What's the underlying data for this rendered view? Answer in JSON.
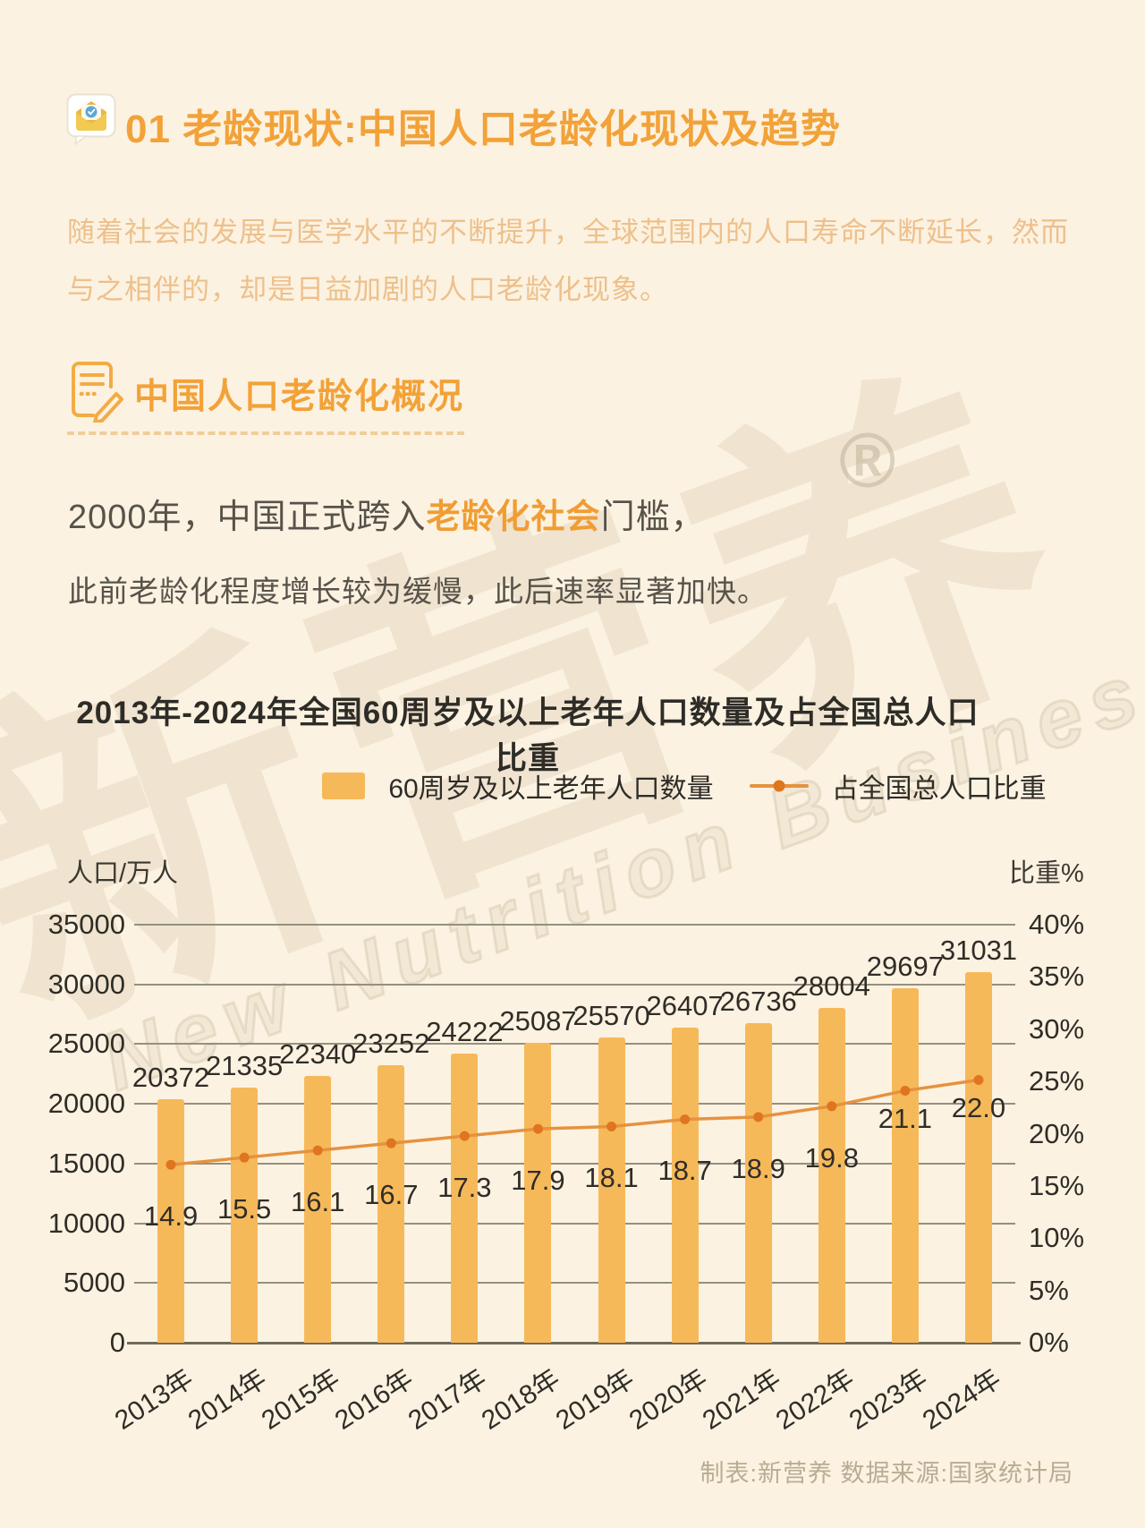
{
  "page": {
    "background": "#fcf2e1",
    "accent_orange": "#f2a238",
    "dark_text": "#57534a"
  },
  "header": {
    "badge_icon": "envelope-check-icon",
    "title": "01 老龄现状:中国人口老龄化现状及趋势"
  },
  "intro": {
    "text": "随着社会的发展与医学水平的不断提升，全球范围内的人口寿命不断延长，然而与之相伴的，却是日益加剧的人口老龄化现象。"
  },
  "section": {
    "icon": "document-pencil-icon",
    "title": "中国人口老龄化概况"
  },
  "statement": {
    "prefix": "2000年，中国正式跨入",
    "highlight": "老龄化社会",
    "suffix": "门槛，",
    "line2": "此前老龄化程度增长较为缓慢，此后速率显著加快。"
  },
  "watermark": {
    "cn": "新营养",
    "reg": "®",
    "en": "New Nutrition Business"
  },
  "chart_data": {
    "type": "bar",
    "title": "2013年-2024年全国60周岁及以上老年人口数量及占全国总人口比重",
    "categories": [
      "2013年",
      "2014年",
      "2015年",
      "2016年",
      "2017年",
      "2018年",
      "2019年",
      "2020年",
      "2021年",
      "2022年",
      "2023年",
      "2024年"
    ],
    "series": [
      {
        "name": "60周岁及以上老年人口数量",
        "type": "bar",
        "axis": "left",
        "color": "#f6b95a",
        "values": [
          20372,
          21335,
          22340,
          23252,
          24222,
          25087,
          25570,
          26407,
          26736,
          28004,
          29697,
          31031
        ]
      },
      {
        "name": "占全国总人口比重",
        "type": "line",
        "axis": "right",
        "unit": "%",
        "color": "#e6923f",
        "marker_color": "#e0751f",
        "values": [
          14.9,
          15.5,
          16.1,
          16.7,
          17.3,
          17.9,
          18.1,
          18.7,
          18.9,
          19.8,
          21.1,
          22.0
        ]
      }
    ],
    "axis_left": {
      "label": "人口/万人",
      "min": 0,
      "max": 35000,
      "ticks": [
        35000,
        30000,
        25000,
        20000,
        15000,
        10000,
        5000,
        0
      ]
    },
    "axis_right": {
      "label": "比重%",
      "min": 0,
      "max": 40,
      "tick_labels": [
        "40%",
        "35%",
        "30%",
        "25%",
        "20%",
        "15%",
        "10%",
        "5%",
        "0%"
      ]
    },
    "grid": true,
    "legend_position": "top",
    "gridline_color": "#94907f"
  },
  "footer": {
    "credit": "制表:新营养  数据来源:国家统计局"
  }
}
